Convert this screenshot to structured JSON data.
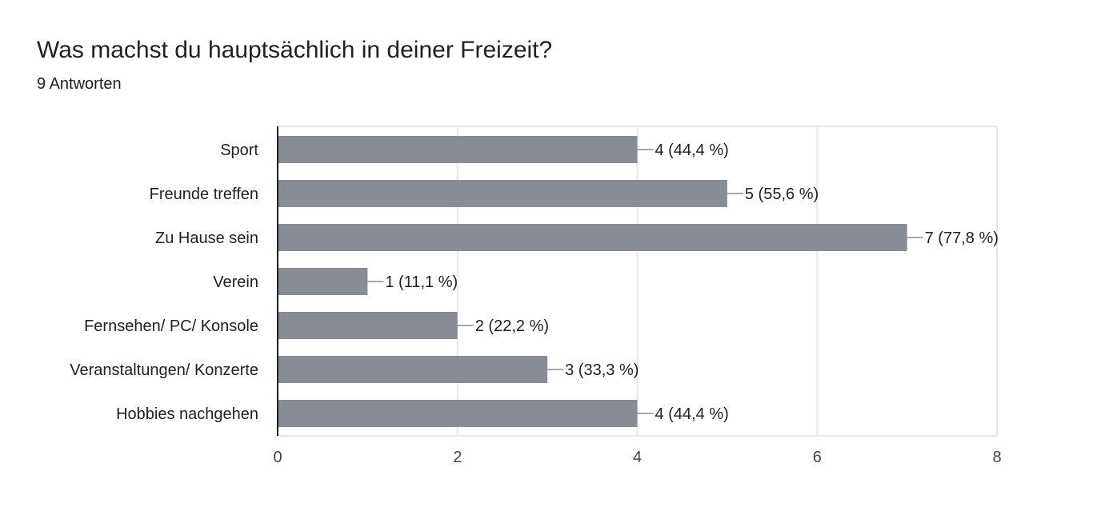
{
  "question": {
    "title": "Was machst du hauptsächlich in deiner Freizeit?",
    "response_count": "9 Antworten"
  },
  "colors": {
    "bar": "#878c95",
    "text": "#202124",
    "axis_text": "#444444",
    "grid": "#e8e8e8",
    "axis_line": "#202124"
  },
  "chart_data": {
    "type": "bar",
    "orientation": "horizontal",
    "categories": [
      "Sport",
      "Freunde treffen",
      "Zu Hause sein",
      "Verein",
      "Fernsehen/ PC/ Konsole",
      "Veranstaltungen/ Konzerte",
      "Hobbies nachgehen"
    ],
    "values": [
      4,
      5,
      7,
      1,
      2,
      3,
      4
    ],
    "data_labels": [
      "4 (44,4 %)",
      "5 (55,6 %)",
      "7 (77,8 %)",
      "1 (11,1 %)",
      "2 (22,2 %)",
      "3 (33,3 %)",
      "4 (44,4 %)"
    ],
    "xlim": [
      0,
      8
    ],
    "x_ticks": [
      0,
      2,
      4,
      6,
      8
    ],
    "grid": true,
    "legend": false
  }
}
